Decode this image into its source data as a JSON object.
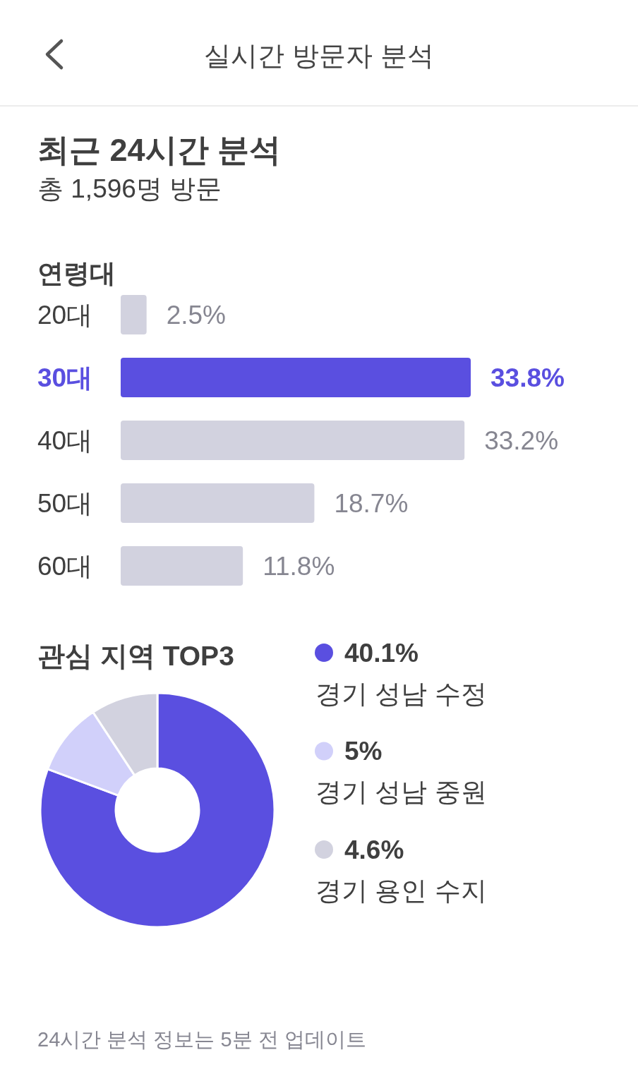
{
  "chart_data": [
    {
      "type": "other",
      "title": "실시간 방문자 분석",
      "subtitle": "최근 24시간 분석",
      "annotations": [
        "총 1,596명 방문"
      ]
    },
    {
      "type": "bar",
      "orientation": "horizontal",
      "title": "연령대",
      "categories": [
        "20대",
        "30대",
        "40대",
        "50대",
        "60대"
      ],
      "values": [
        2.5,
        33.8,
        33.2,
        18.7,
        11.8
      ],
      "colors": [
        "#d2d2df",
        "#5a4fe0",
        "#d2d2df",
        "#d2d2df",
        "#d2d2df"
      ],
      "value_labels": [
        "2.5%",
        "33.8%",
        "33.2%",
        "18.7%",
        "11.8%"
      ]
    },
    {
      "type": "donut",
      "title": "관심 지역 TOP3",
      "categories": [
        "경기 성남 수정",
        "경기 성남 중원",
        "경기 용인 수지"
      ],
      "values": [
        40.1,
        5,
        4.6
      ],
      "colors": [
        "#5a4fe0",
        "#d1d0fa",
        "#d2d2df"
      ],
      "value_labels": [
        "40.1%",
        "5%",
        "4.6%"
      ],
      "legend": "right",
      "annotations": [
        "24시간 분석 정보는 5분 전 업데이트"
      ]
    }
  ]
}
